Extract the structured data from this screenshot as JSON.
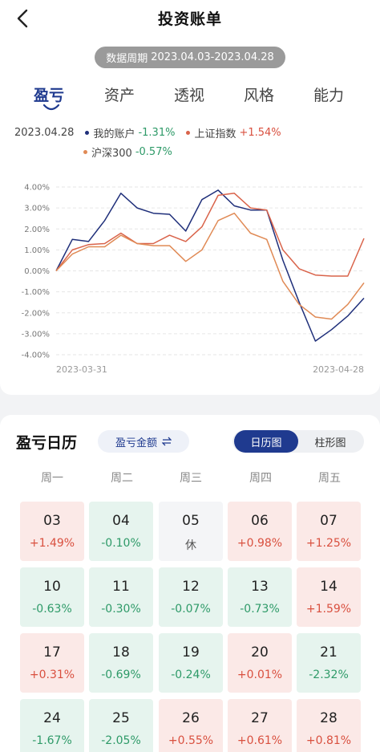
{
  "header": {
    "title": "投资账单",
    "back_icon": "chevron-left-icon"
  },
  "period": {
    "label": "数据周期",
    "range": "2023.04.03-2023.04.28"
  },
  "tabs": [
    {
      "label": "盈亏",
      "active": true
    },
    {
      "label": "资产",
      "active": false
    },
    {
      "label": "透视",
      "active": false
    },
    {
      "label": "风格",
      "active": false
    },
    {
      "label": "能力",
      "active": false
    }
  ],
  "legend": {
    "date": "2023.04.28",
    "items": [
      {
        "name": "我的账户",
        "value": "-1.31%",
        "color": "#1f2f7a"
      },
      {
        "name": "上证指数",
        "value": "+1.54%",
        "color": "#d9634a"
      },
      {
        "name": "沪深300",
        "value": "-0.57%",
        "color": "#e08a55"
      }
    ]
  },
  "chart_data": {
    "type": "line",
    "x_start_label": "2023-03-31",
    "x_end_label": "2023-04-28",
    "y_ticks": [
      "4.00%",
      "3.00%",
      "2.00%",
      "1.00%",
      "0.00%",
      "-1.00%",
      "-2.00%",
      "-3.00%",
      "-4.00%"
    ],
    "ylim": [
      -4,
      4
    ],
    "x": [
      "2023-03-31",
      "2023-04-03",
      "2023-04-04",
      "2023-04-06",
      "2023-04-07",
      "2023-04-10",
      "2023-04-11",
      "2023-04-12",
      "2023-04-13",
      "2023-04-14",
      "2023-04-17",
      "2023-04-18",
      "2023-04-19",
      "2023-04-20",
      "2023-04-21",
      "2023-04-24",
      "2023-04-25",
      "2023-04-26",
      "2023-04-27",
      "2023-04-28"
    ],
    "series": [
      {
        "name": "我的账户",
        "color": "#1f2f7a",
        "values": [
          0,
          1.5,
          1.4,
          2.4,
          3.7,
          3.0,
          2.75,
          2.7,
          1.9,
          3.4,
          3.85,
          3.1,
          2.9,
          2.9,
          0.5,
          -1.5,
          -3.35,
          -2.8,
          -2.15,
          -1.3
        ]
      },
      {
        "name": "上证指数",
        "color": "#d9634a",
        "values": [
          0,
          1.0,
          1.25,
          1.3,
          1.8,
          1.3,
          1.3,
          1.7,
          1.4,
          2.1,
          3.6,
          3.7,
          3.0,
          2.9,
          1.0,
          0.1,
          -0.2,
          -0.25,
          -0.25,
          1.55
        ]
      },
      {
        "name": "沪深300",
        "color": "#e08a55",
        "values": [
          0,
          0.8,
          1.15,
          1.15,
          1.7,
          1.3,
          1.2,
          1.2,
          0.45,
          1.0,
          2.4,
          2.75,
          1.8,
          1.5,
          -0.5,
          -1.6,
          -2.2,
          -2.3,
          -1.6,
          -0.57
        ]
      }
    ]
  },
  "calendar": {
    "title": "盈亏日历",
    "metric_label": "盈亏金额",
    "metric_icon": "swap-arrows-icon",
    "view_active": "日历图",
    "view_inactive": "柱形图",
    "weekdays": [
      "周一",
      "周二",
      "周三",
      "周四",
      "周五"
    ],
    "weeks": [
      [
        {
          "date": "03",
          "value": "+1.49%",
          "type": "up"
        },
        {
          "date": "04",
          "value": "-0.10%",
          "type": "down"
        },
        {
          "date": "05",
          "value": "休",
          "type": "off"
        },
        {
          "date": "06",
          "value": "+0.98%",
          "type": "up"
        },
        {
          "date": "07",
          "value": "+1.25%",
          "type": "up"
        }
      ],
      [
        {
          "date": "10",
          "value": "-0.63%",
          "type": "down"
        },
        {
          "date": "11",
          "value": "-0.30%",
          "type": "down"
        },
        {
          "date": "12",
          "value": "-0.07%",
          "type": "down"
        },
        {
          "date": "13",
          "value": "-0.73%",
          "type": "down"
        },
        {
          "date": "14",
          "value": "+1.59%",
          "type": "up"
        }
      ],
      [
        {
          "date": "17",
          "value": "+0.31%",
          "type": "up"
        },
        {
          "date": "18",
          "value": "-0.69%",
          "type": "down"
        },
        {
          "date": "19",
          "value": "-0.24%",
          "type": "down"
        },
        {
          "date": "20",
          "value": "+0.01%",
          "type": "up"
        },
        {
          "date": "21",
          "value": "-2.32%",
          "type": "down"
        }
      ],
      [
        {
          "date": "24",
          "value": "-1.67%",
          "type": "down"
        },
        {
          "date": "25",
          "value": "-2.05%",
          "type": "down"
        },
        {
          "date": "26",
          "value": "+0.55%",
          "type": "up"
        },
        {
          "date": "27",
          "value": "+0.61%",
          "type": "up"
        },
        {
          "date": "28",
          "value": "+0.81%",
          "type": "up"
        }
      ]
    ]
  }
}
